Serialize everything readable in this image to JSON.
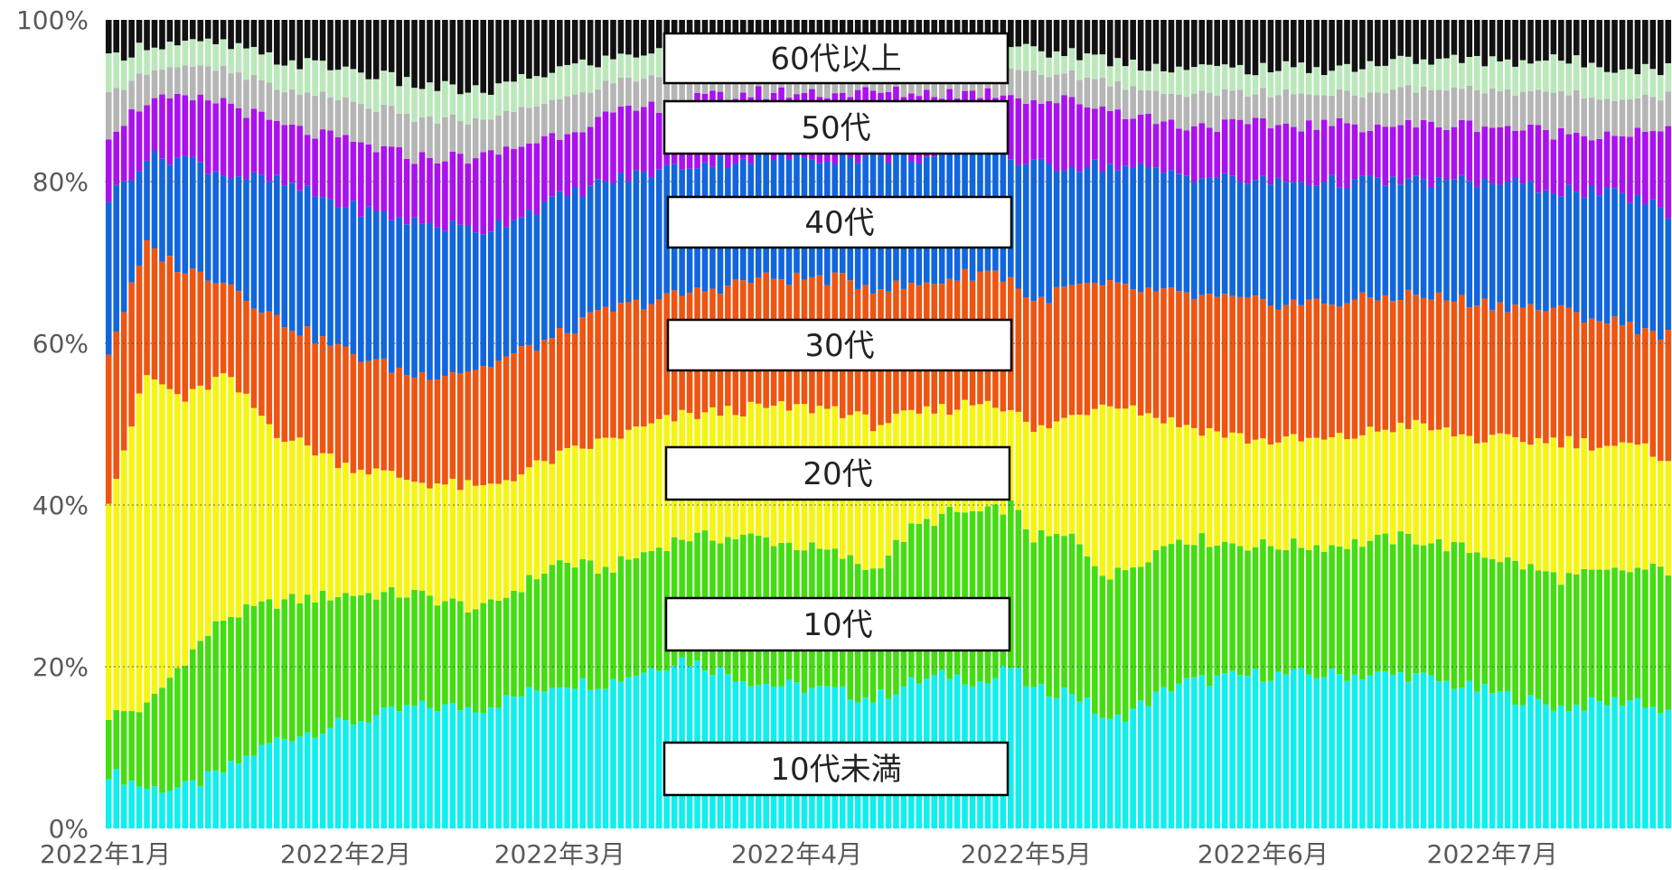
{
  "chart_data": {
    "type": "bar",
    "stacking": "percent",
    "ylim": [
      0,
      100
    ],
    "y_ticks": [
      "0%",
      "20%",
      "40%",
      "60%",
      "80%",
      "100%"
    ],
    "x_ticks": [
      "2022年1月",
      "2022年2月",
      "2022年3月",
      "2022年4月",
      "2022年5月",
      "2022年6月",
      "2022年7月"
    ],
    "grid": "horizontal dotted",
    "series_labels_placement": "boxed labels in the middle of the chart",
    "days": 205,
    "anchor_days": [
      0,
      5,
      10,
      15,
      22,
      31,
      40,
      49,
      59,
      65,
      75,
      85,
      95,
      100,
      105,
      110,
      115,
      118,
      121,
      126,
      131,
      140,
      150,
      160,
      170,
      180,
      190,
      200,
      204
    ],
    "cumulative_boundaries": [
      {
        "name": "10代未満",
        "color": "#11eeee",
        "values": [
          7,
          5,
          5,
          7,
          11,
          13,
          15,
          15,
          18,
          18,
          21,
          18,
          17,
          16,
          18,
          19,
          18,
          20,
          17,
          17,
          13,
          18,
          19,
          19,
          19,
          17,
          15,
          16,
          14
        ]
      },
      {
        "name": "10代",
        "color": "#44dd11",
        "values": [
          14,
          15,
          21,
          26,
          28,
          29,
          29,
          27,
          33,
          32,
          36,
          36,
          34,
          32,
          37,
          39,
          39,
          40,
          36,
          36,
          31,
          36,
          35,
          35,
          36,
          34,
          31,
          32,
          32
        ]
      },
      {
        "name": "20代",
        "color": "#f5f511",
        "values": [
          41,
          56,
          53,
          56,
          49,
          45,
          43,
          42,
          46,
          48,
          51,
          52,
          52,
          50,
          51,
          52,
          53,
          52,
          49,
          51,
          53,
          50,
          48,
          48,
          50,
          48,
          48,
          47,
          46
        ]
      },
      {
        "name": "30代",
        "color": "#ee5511",
        "values": [
          59,
          72,
          69,
          68,
          63,
          59,
          56,
          57,
          61,
          64,
          66,
          68,
          68,
          67,
          67,
          68,
          69,
          68,
          65,
          67,
          67,
          66,
          65,
          65,
          66,
          65,
          64,
          62,
          61
        ]
      },
      {
        "name": "40代",
        "color": "#1166dd",
        "values": [
          78,
          83,
          83,
          81,
          80,
          77,
          75,
          74,
          78,
          80,
          82,
          83,
          83,
          83,
          83,
          83,
          84,
          83,
          82,
          82,
          82,
          81,
          80,
          80,
          80,
          80,
          79,
          78,
          76
        ]
      },
      {
        "name": "50代",
        "color": "#aa11ee",
        "values": [
          86,
          90,
          90,
          90,
          87,
          85,
          83,
          83,
          86,
          88,
          90,
          91,
          91,
          91,
          91,
          91,
          91,
          91,
          90,
          90,
          89,
          87,
          87,
          87,
          87,
          87,
          86,
          86,
          86
        ]
      },
      {
        "name": "60代以上",
        "color": "#bbe8bb",
        "values": [
          95,
          97,
          97,
          97,
          95,
          94,
          92,
          91,
          94,
          95,
          97,
          97,
          97,
          97,
          97,
          97,
          97,
          97,
          96,
          96,
          95,
          94,
          94,
          94,
          95,
          95,
          95,
          94,
          94
        ]
      }
    ],
    "top_color": "#111111",
    "gray_band_color": "#b5b5b5",
    "labels": [
      "60代以上",
      "50代",
      "40代",
      "30代",
      "20代",
      "10代",
      "10代未満"
    ]
  }
}
